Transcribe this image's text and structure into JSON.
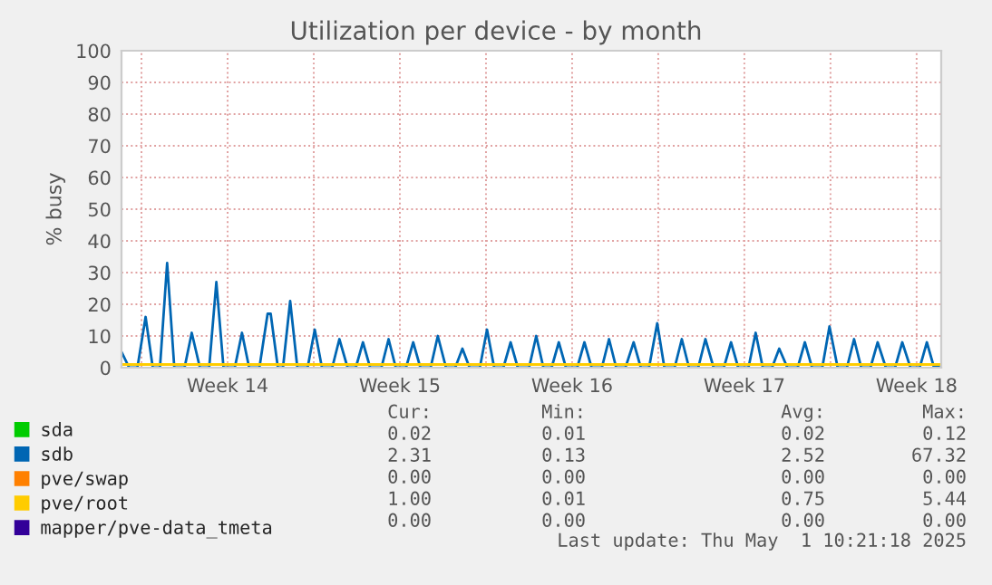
{
  "chart_data": {
    "type": "line",
    "title": "Utilization per device - by month",
    "ylabel": "% busy",
    "xlim": [
      "2025-03-30T04:30",
      "2025-05-02T12:00"
    ],
    "xticks": [
      {
        "value": "2025-03-31",
        "label": null
      },
      {
        "value": "2025-04-03T12:00",
        "label": "Week 14"
      },
      {
        "value": "2025-04-07",
        "label": null
      },
      {
        "value": "2025-04-10T12:00",
        "label": "Week 15"
      },
      {
        "value": "2025-04-14",
        "label": null
      },
      {
        "value": "2025-04-17T12:00",
        "label": "Week 16"
      },
      {
        "value": "2025-04-21",
        "label": null
      },
      {
        "value": "2025-04-24T12:00",
        "label": "Week 17"
      },
      {
        "value": "2025-04-28",
        "label": null
      },
      {
        "value": "2025-05-01T12:00",
        "label": "Week 18"
      }
    ],
    "ylim": [
      0,
      100
    ],
    "yticks": [
      0,
      10,
      20,
      30,
      40,
      50,
      60,
      70,
      80,
      90,
      100
    ],
    "grid": true,
    "legend": "bottom",
    "series": [
      {
        "name": "sda",
        "color": "#00cc00"
      },
      {
        "name": "sdb",
        "color": "#0066b3",
        "x": [
          "2025-03-30T04:30",
          "2025-03-30T12:00",
          "2025-03-30T20:00",
          "2025-03-31T04:00",
          "2025-03-31T11:00",
          "2025-03-31T18:00",
          "2025-04-01T01:00",
          "2025-04-01T08:00",
          "2025-04-01T18:00",
          "2025-04-02T01:00",
          "2025-04-02T09:00",
          "2025-04-02T18:00",
          "2025-04-03T01:00",
          "2025-04-03T08:00",
          "2025-04-03T19:00",
          "2025-04-04T02:00",
          "2025-04-04T09:00",
          "2025-04-04T19:00",
          "2025-04-05T03:00",
          "2025-04-05T06:00",
          "2025-04-05T13:00",
          "2025-04-05T18:00",
          "2025-04-06T01:00",
          "2025-04-06T08:00",
          "2025-04-06T18:00",
          "2025-04-07T01:00",
          "2025-04-07T08:00",
          "2025-04-07T18:00",
          "2025-04-08T01:00",
          "2025-04-08T09:00",
          "2025-04-08T17:00",
          "2025-04-09T00:00",
          "2025-04-09T07:00",
          "2025-04-09T18:00",
          "2025-04-10T01:00",
          "2025-04-10T08:00",
          "2025-04-10T18:00",
          "2025-04-11T01:00",
          "2025-04-11T08:00",
          "2025-04-11T18:00",
          "2025-04-12T01:00",
          "2025-04-12T09:00",
          "2025-04-12T18:00",
          "2025-04-13T01:00",
          "2025-04-13T08:00",
          "2025-04-13T18:00",
          "2025-04-14T01:00",
          "2025-04-14T08:00",
          "2025-04-14T17:00",
          "2025-04-15T00:00",
          "2025-04-15T07:00",
          "2025-04-15T18:00",
          "2025-04-16T01:00",
          "2025-04-16T08:00",
          "2025-04-16T16:00",
          "2025-04-16T23:00",
          "2025-04-17T06:00",
          "2025-04-17T17:00",
          "2025-04-18T00:00",
          "2025-04-18T07:00",
          "2025-04-18T17:00",
          "2025-04-19T00:00",
          "2025-04-19T07:00",
          "2025-04-19T16:00",
          "2025-04-20T00:00",
          "2025-04-20T07:00",
          "2025-04-20T15:00",
          "2025-04-20T23:00",
          "2025-04-21T06:00",
          "2025-04-21T16:00",
          "2025-04-21T23:00",
          "2025-04-22T06:00",
          "2025-04-22T15:00",
          "2025-04-22T22:00",
          "2025-04-23T06:00",
          "2025-04-23T16:00",
          "2025-04-23T23:00",
          "2025-04-24T06:00",
          "2025-04-24T16:00",
          "2025-04-24T23:00",
          "2025-04-25T06:00",
          "2025-04-25T15:00",
          "2025-04-25T22:00",
          "2025-04-26T06:00",
          "2025-04-26T16:00",
          "2025-04-26T23:00",
          "2025-04-27T06:00",
          "2025-04-27T16:00",
          "2025-04-27T23:00",
          "2025-04-28T07:00",
          "2025-04-28T16:00",
          "2025-04-28T23:00",
          "2025-04-29T06:00",
          "2025-04-29T15:00",
          "2025-04-29T22:00",
          "2025-04-30T06:00",
          "2025-04-30T15:00",
          "2025-04-30T22:00",
          "2025-05-01T06:00",
          "2025-05-01T15:00",
          "2025-05-01T22:00",
          "2025-05-02T05:00",
          "2025-05-02T12:00"
        ],
        "values": [
          5,
          0,
          0,
          16,
          0,
          0,
          33,
          0,
          0,
          11,
          0,
          0,
          27,
          0,
          0,
          11,
          0,
          0,
          17,
          17,
          0,
          0,
          21,
          0,
          0,
          12,
          0,
          0,
          9,
          0,
          0,
          8,
          0,
          0,
          9,
          0,
          0,
          8,
          0,
          0,
          10,
          0,
          0,
          6,
          0,
          0,
          12,
          0,
          0,
          8,
          0,
          0,
          10,
          0,
          0,
          8,
          0,
          0,
          8,
          0,
          0,
          9,
          0,
          0,
          8,
          0,
          0,
          14,
          0,
          0,
          9,
          0,
          0,
          9,
          0,
          0,
          8,
          0,
          0,
          11,
          0,
          0,
          6,
          0,
          0,
          8,
          0,
          0,
          13,
          0,
          0,
          9,
          0,
          0,
          8,
          0,
          0,
          8,
          0,
          0,
          8,
          0,
          1
        ]
      },
      {
        "name": "pve/swap",
        "color": "#ff8000"
      },
      {
        "name": "pve/root",
        "color": "#ffcc00",
        "x": [
          "2025-03-30T04:30",
          "2025-05-02T12:00"
        ],
        "values": [
          1,
          1
        ]
      },
      {
        "name": "mapper/pve-data_tmeta",
        "color": "#330099"
      }
    ],
    "annotations": [
      "Cur:",
      "Min:",
      "Avg:",
      "Max:",
      "0.02",
      "0.01",
      "0.02",
      "0.12",
      "2.31",
      "0.13",
      "2.52",
      "67.32",
      "0.00",
      "0.00",
      "0.00",
      "0.00",
      "1.00",
      "0.01",
      "0.75",
      "5.44",
      "0.00",
      "0.00",
      "0.00",
      "0.00",
      "Last update: Thu May  1 10:21:18 2025"
    ]
  }
}
